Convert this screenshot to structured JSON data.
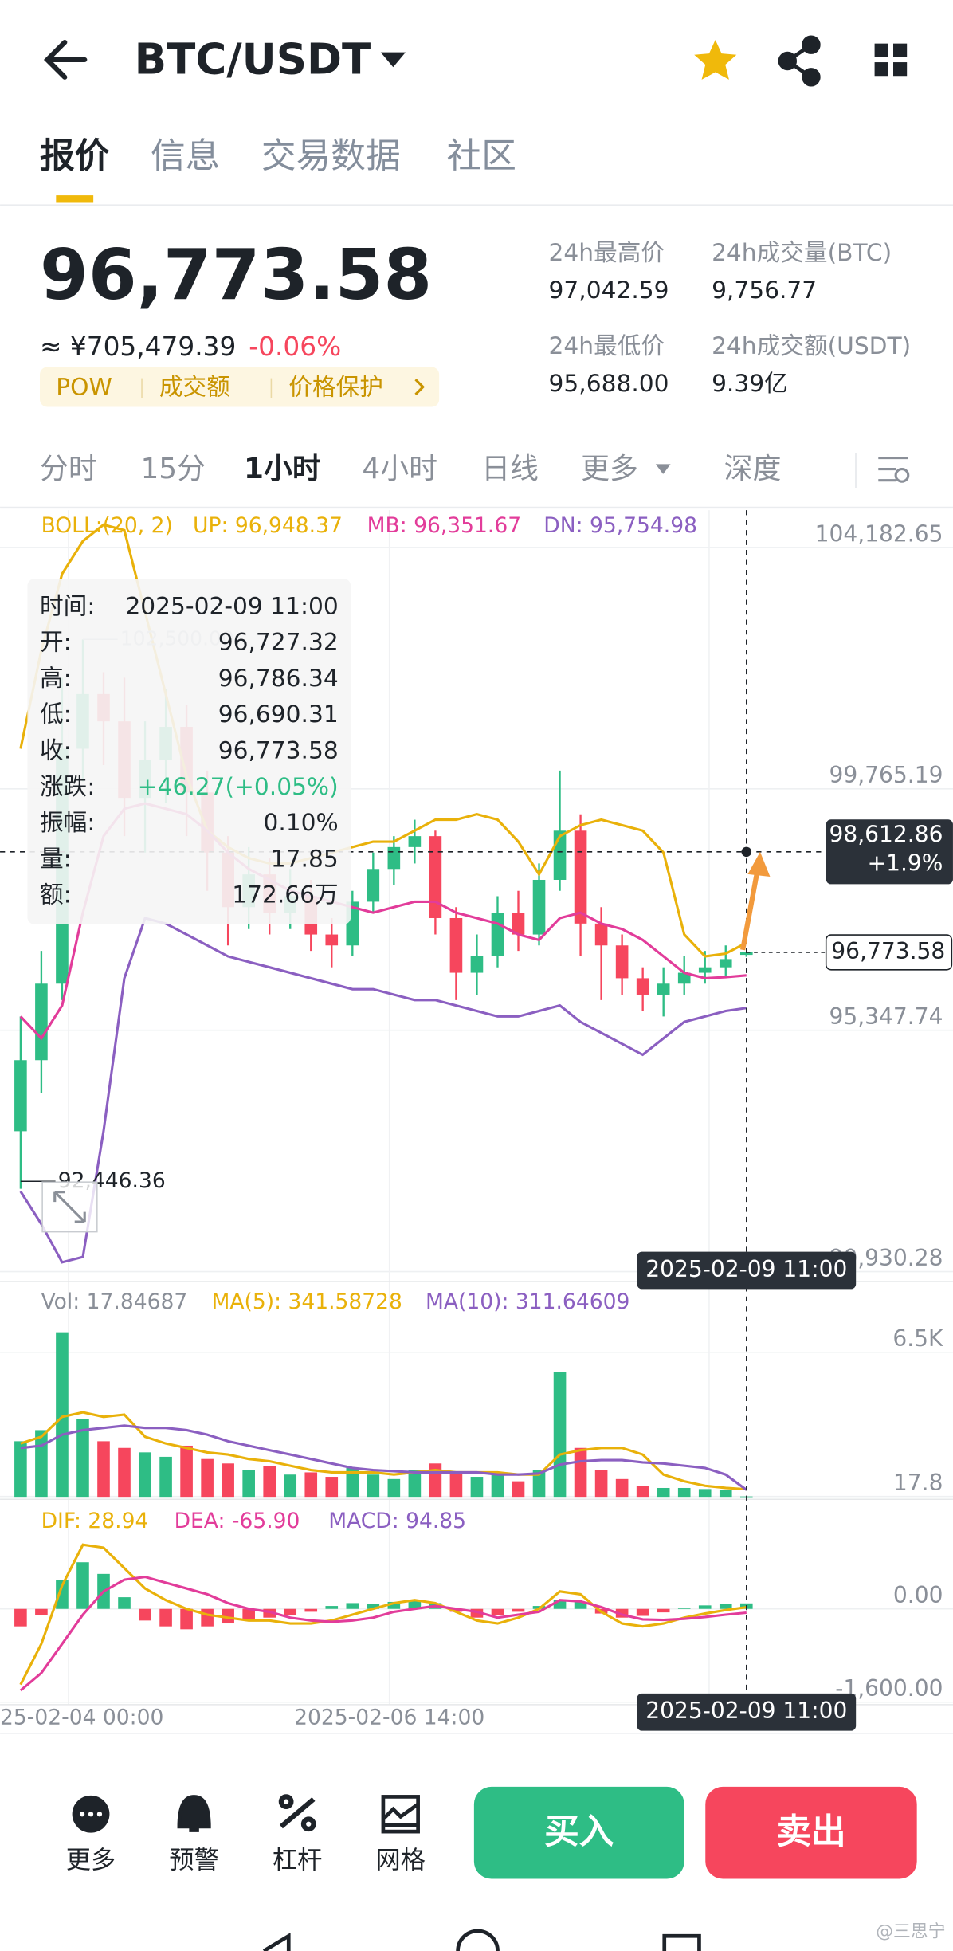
{
  "header": {
    "title": "BTC/USDT"
  },
  "tabs": [
    "报价",
    "信息",
    "交易数据",
    "社区"
  ],
  "ticker": {
    "price": "96,773.58",
    "cny": "≈ ¥705,479.39",
    "change": "-0.06%",
    "tags": [
      "POW",
      "成交额",
      "价格保护"
    ]
  },
  "stats": [
    [
      "24h最高价",
      "97,042.59"
    ],
    [
      "24h成交量(BTC)",
      "9,756.77"
    ],
    [
      "24h最低价",
      "95,688.00"
    ],
    [
      "24h成交额(USDT)",
      "9.39亿"
    ]
  ],
  "timeframes": [
    "分时",
    "15分",
    "1小时",
    "4小时",
    "日线",
    "更多",
    "深度"
  ],
  "tooltip": [
    [
      "时间:",
      "2025-02-09 11:00"
    ],
    [
      "开:",
      "96,727.32"
    ],
    [
      "高:",
      "96,786.34"
    ],
    [
      "低:",
      "96,690.31"
    ],
    [
      "收:",
      "96,773.58"
    ],
    [
      "涨跌:",
      "+46.27(+0.05%)"
    ],
    [
      "振幅:",
      "0.10%"
    ],
    [
      "量:",
      "17.85"
    ],
    [
      "额:",
      "172.66万"
    ]
  ],
  "chart_data": [
    {
      "type": "candlestick",
      "indicator": "BOLL:(20, 2)",
      "indicator_color": "#e9b10a",
      "up_color": "#2ebd85",
      "down_color": "#f6465d",
      "open": [
        93500,
        94800,
        96200,
        100500,
        101500,
        101000,
        99600,
        100300,
        100900,
        99700,
        98600,
        97600,
        98200,
        97500,
        97800,
        97100,
        96900,
        97700,
        98300,
        98700,
        98900,
        97400,
        96400,
        96700,
        97500,
        97100,
        98100,
        99000,
        97300,
        96900,
        96300,
        96000,
        96200,
        96400,
        96500,
        96727.32
      ],
      "high": [
        95600,
        96800,
        101800,
        102500,
        101900,
        101800,
        101000,
        101600,
        101300,
        100100,
        98900,
        98700,
        98500,
        98300,
        98100,
        97400,
        97900,
        98600,
        98900,
        99200,
        99000,
        97600,
        97100,
        97800,
        97900,
        98400,
        100100,
        99300,
        97600,
        97100,
        96500,
        96500,
        96700,
        96800,
        96900,
        96786.34
      ],
      "low": [
        92446.36,
        94200,
        95900,
        99900,
        100200,
        98900,
        98600,
        99500,
        98900,
        97900,
        96900,
        97200,
        97100,
        97200,
        96800,
        96500,
        96700,
        97500,
        98000,
        98400,
        97100,
        95900,
        96000,
        96500,
        96800,
        96900,
        97900,
        96700,
        95900,
        96000,
        95700,
        95600,
        96000,
        96200,
        96350,
        96690.31
      ],
      "close": [
        94800,
        96200,
        100500,
        101500,
        101000,
        99600,
        100300,
        100900,
        99700,
        98600,
        97600,
        98200,
        97500,
        97800,
        97100,
        96900,
        97700,
        98300,
        98700,
        98900,
        97400,
        96400,
        96700,
        97500,
        97100,
        98100,
        99000,
        97300,
        96900,
        96300,
        96000,
        96200,
        96400,
        96500,
        96650,
        96773.58
      ],
      "series": [
        {
          "name": "UP: 96,948.37",
          "color": "#e9b10a",
          "values": [
            100500,
            102300,
            103700,
            104300,
            104600,
            104500,
            103000,
            101500,
            100000,
            99000,
            98700,
            98500,
            98400,
            98400,
            98500,
            98600,
            98700,
            98800,
            98800,
            99000,
            99200,
            99200,
            99300,
            99200,
            98800,
            98200,
            98900,
            99100,
            99200,
            99100,
            99000,
            98600,
            97100,
            96700,
            96750,
            96948.37
          ]
        },
        {
          "name": "MB: 96,351.67",
          "color": "#e23c9a",
          "values": [
            95600,
            95200,
            95800,
            97500,
            98900,
            99400,
            99500,
            99400,
            99300,
            99000,
            98600,
            98300,
            98100,
            97900,
            97800,
            97700,
            97600,
            97500,
            97600,
            97700,
            97700,
            97500,
            97400,
            97300,
            97100,
            97000,
            97400,
            97500,
            97300,
            97200,
            97000,
            96700,
            96400,
            96300,
            96320,
            96351.67
          ]
        },
        {
          "name": "DN: 95,754.98",
          "color": "#8b5fc1",
          "values": [
            92400,
            91800,
            91100,
            91200,
            93500,
            96300,
            97400,
            97300,
            97100,
            96900,
            96700,
            96600,
            96500,
            96400,
            96300,
            96200,
            96100,
            96100,
            96000,
            95900,
            95900,
            95800,
            95700,
            95600,
            95600,
            95700,
            95800,
            95500,
            95300,
            95100,
            94900,
            95200,
            95500,
            95600,
            95700,
            95754.98
          ]
        }
      ],
      "ylim": [
        90748,
        104866
      ],
      "yticks": [
        {
          "value": 104182.65,
          "label": "104,182.65"
        },
        {
          "value": 99765.19,
          "label": "99,765.19"
        },
        {
          "value": 95347.74,
          "label": "95,347.74"
        },
        {
          "value": 90930.28,
          "label": "90,930.28"
        }
      ],
      "max_label": {
        "value": 102500,
        "label": "102,500.00"
      },
      "min_label": {
        "value": 92446.36,
        "label": "92,446.36"
      },
      "crosshair": {
        "value": 98612.86,
        "label": "98,612.86",
        "change": "+1.9%",
        "time": "2025-02-09 11:00"
      },
      "last_price": {
        "value": 96773.58,
        "label": "96,773.58"
      },
      "x_labels": [
        "25-02-04 00:00",
        "2025-02-06 14:00"
      ]
    },
    {
      "type": "bar",
      "series": [
        {
          "name": "Vol: 17.84687",
          "color": "#8a8f98",
          "values": [
            2500,
            3000,
            7400,
            3500,
            2500,
            2200,
            2000,
            1800,
            2300,
            1700,
            1500,
            1200,
            1400,
            1000,
            1100,
            900,
            1300,
            1000,
            800,
            1200,
            1500,
            1100,
            900,
            1000,
            700,
            1200,
            5600,
            2200,
            1200,
            800,
            500,
            400,
            400,
            350,
            300,
            17.85
          ]
        },
        {
          "name": "MA(5): 341.58728",
          "color": "#e9b10a",
          "values": [
            2400,
            2700,
            3600,
            3800,
            3600,
            3700,
            2700,
            2400,
            2200,
            2000,
            1900,
            1700,
            1600,
            1400,
            1200,
            1100,
            1100,
            1100,
            1000,
            1100,
            1200,
            1100,
            1100,
            1100,
            1000,
            1000,
            1900,
            2100,
            2200,
            2200,
            1900,
            1000,
            700,
            500,
            400,
            341.58728
          ]
        },
        {
          "name": "MA(10): 311.64609",
          "color": "#8b5fc1",
          "values": [
            2200,
            2300,
            2800,
            3000,
            3100,
            3200,
            3100,
            3100,
            3000,
            2800,
            2500,
            2300,
            2100,
            1900,
            1700,
            1500,
            1300,
            1200,
            1150,
            1100,
            1100,
            1100,
            1100,
            1000,
            1000,
            1050,
            1450,
            1600,
            1650,
            1650,
            1550,
            1500,
            1400,
            1300,
            1000,
            311.64609
          ]
        }
      ],
      "ylim": [
        0,
        8000
      ],
      "yticks": [
        {
          "value": 6500,
          "label": "6.5K"
        },
        17.8
      ]
    },
    {
      "type": "bar",
      "series": [
        {
          "name": "MACD: 94.85",
          "color": "#8b5fc1",
          "values": [
            -300,
            -100,
            500,
            800,
            600,
            200,
            -200,
            -300,
            -350,
            -300,
            -250,
            -200,
            -150,
            -100,
            -50,
            50,
            100,
            80,
            120,
            150,
            100,
            -50,
            -150,
            -100,
            -50,
            50,
            150,
            120,
            -80,
            -150,
            -120,
            -60,
            20,
            60,
            80,
            94.85
          ]
        },
        {
          "name": "DIF: 28.94",
          "color": "#e9b10a",
          "values": [
            -1300,
            -600,
            400,
            1100,
            1050,
            700,
            350,
            150,
            0,
            -100,
            -150,
            -200,
            -200,
            -250,
            -250,
            -200,
            -100,
            0,
            100,
            150,
            100,
            -50,
            -200,
            -250,
            -150,
            0,
            300,
            250,
            -50,
            -250,
            -300,
            -250,
            -150,
            -80,
            -20,
            28.94
          ]
        },
        {
          "name": "DEA: -65.90",
          "color": "#e23c9a",
          "values": [
            -1400,
            -1100,
            -600,
            -100,
            300,
            500,
            550,
            450,
            350,
            250,
            100,
            0,
            -50,
            -150,
            -200,
            -220,
            -200,
            -150,
            -50,
            0,
            50,
            0,
            -50,
            -150,
            -100,
            -50,
            150,
            130,
            30,
            -100,
            -180,
            -190,
            -170,
            -140,
            -100,
            -65.9
          ]
        }
      ],
      "ylim": [
        -1600,
        1730
      ],
      "yticks": [
        {
          "value": 0,
          "label": "0.00"
        },
        {
          "value": -1600,
          "label": "-1,600.00"
        }
      ]
    }
  ],
  "bottom_bar": {
    "tools": [
      "更多",
      "预警",
      "杠杆",
      "网格"
    ],
    "buy": "买入",
    "sell": "卖出"
  },
  "watermark": "@三思宁"
}
